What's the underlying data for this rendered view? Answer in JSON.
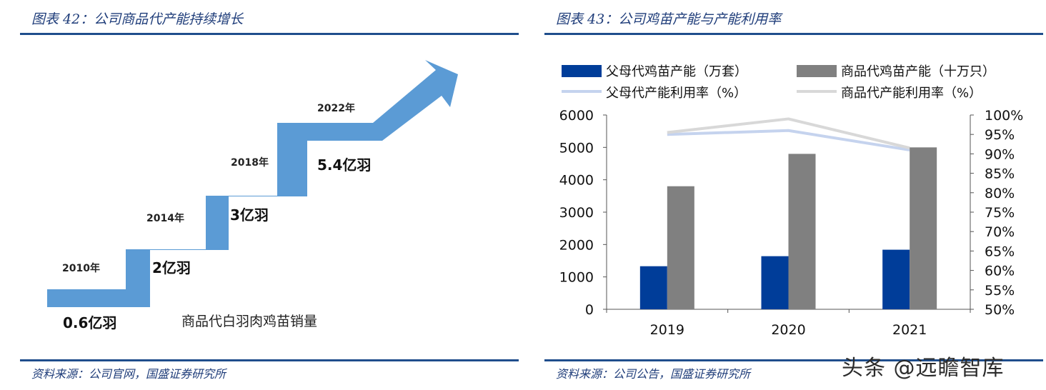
{
  "left_panel": {
    "title": "图表 42：公司商品代产能持续增长",
    "source": "资料来源：公司官网，国盛证券研究所",
    "caption": "商品代白羽肉鸡苗销量",
    "steps": [
      {
        "year": "2010年",
        "value_label": "0.6亿羽"
      },
      {
        "year": "2014年",
        "value_label": "2亿羽"
      },
      {
        "year": "2018年",
        "value_label": "3亿羽"
      },
      {
        "year": "2022年",
        "value_label": "5.4亿羽"
      }
    ],
    "arrow_color": "#5b9bd5"
  },
  "right_panel": {
    "title": "图表 43：公司鸡苗产能与产能利用率",
    "source": "资料来源：公司公告，国盛证券研究所"
  },
  "watermark": "头条 @远瞻智库",
  "chart_data": {
    "type": "bar",
    "categories": [
      "2019",
      "2020",
      "2021"
    ],
    "series": [
      {
        "name": "父母代鸡苗产能（万套）",
        "kind": "bar",
        "axis": "left",
        "color": "#003d99",
        "values": [
          1330,
          1640,
          1840
        ]
      },
      {
        "name": "商品代鸡苗产能（十万只）",
        "kind": "bar",
        "axis": "left",
        "color": "#808080",
        "values": [
          3800,
          4800,
          5000
        ]
      },
      {
        "name": "父母代产能利用率（%）",
        "kind": "line",
        "axis": "right",
        "color": "#c5d3ee",
        "values": [
          95,
          96,
          91
        ]
      },
      {
        "name": "商品代产能利用率（%）",
        "kind": "line",
        "axis": "right",
        "color": "#d8d8d8",
        "values": [
          95.5,
          99,
          91.5
        ]
      }
    ],
    "ylim": [
      0,
      6000
    ],
    "yticks": [
      "0",
      "1000",
      "2000",
      "3000",
      "4000",
      "5000",
      "6000"
    ],
    "y2lim": [
      50,
      100
    ],
    "y2ticks": [
      "50%",
      "55%",
      "60%",
      "65%",
      "70%",
      "75%",
      "80%",
      "85%",
      "90%",
      "95%",
      "100%"
    ],
    "legend_position": "top",
    "grid": false
  }
}
